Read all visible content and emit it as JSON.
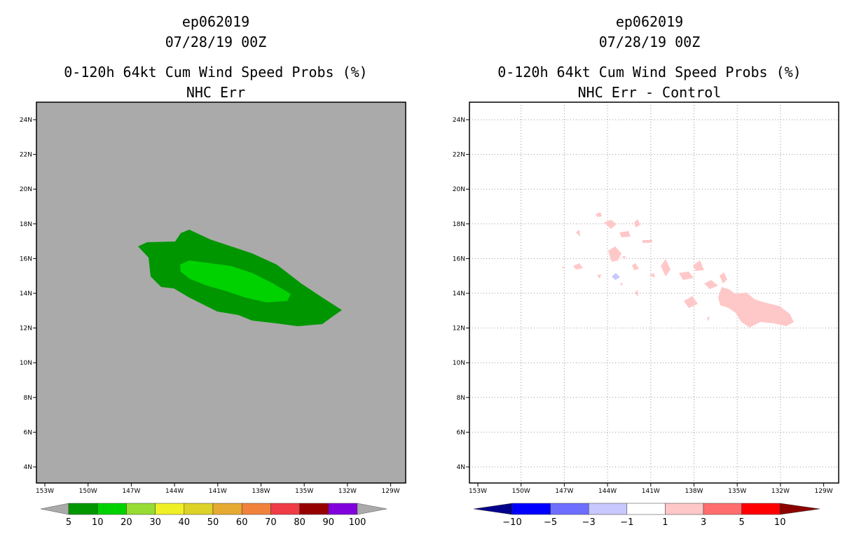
{
  "chart_data": [
    {
      "type": "heatmap",
      "storm_id": "ep062019",
      "datetime": "07/28/19 00Z",
      "title": "0-120h 64kt Cum Wind Speed Probs (%)",
      "subtitle": "NHC Err",
      "x_ticks": [
        "153W",
        "150W",
        "147W",
        "144W",
        "141W",
        "138W",
        "135W",
        "132W",
        "129W"
      ],
      "y_ticks": [
        "24N",
        "22N",
        "20N",
        "18N",
        "16N",
        "14N",
        "12N",
        "10N",
        "8N",
        "6N",
        "4N"
      ],
      "background_color": "#aaaaaa",
      "colorbar": {
        "labels": [
          "5",
          "10",
          "20",
          "30",
          "40",
          "50",
          "60",
          "70",
          "80",
          "90",
          "100"
        ],
        "colors": [
          "#009600",
          "#00d200",
          "#96dc32",
          "#f0f028",
          "#dcd228",
          "#e6aa32",
          "#f0823c",
          "#f03c46",
          "#960000",
          "#8200dc"
        ]
      },
      "regions": [
        {
          "level": "5-10",
          "color": "#009600"
        },
        {
          "level": "10-20",
          "color": "#00d200"
        }
      ]
    },
    {
      "type": "heatmap",
      "storm_id": "ep062019",
      "datetime": "07/28/19 00Z",
      "title": "0-120h 64kt Cum Wind Speed Probs (%)",
      "subtitle": "NHC Err - Control",
      "x_ticks": [
        "153W",
        "150W",
        "147W",
        "144W",
        "141W",
        "138W",
        "135W",
        "132W",
        "129W"
      ],
      "y_ticks": [
        "24N",
        "22N",
        "20N",
        "18N",
        "16N",
        "14N",
        "12N",
        "10N",
        "8N",
        "6N",
        "4N"
      ],
      "grid": true,
      "colorbar": {
        "labels": [
          "-10",
          "-5",
          "-3",
          "-1",
          "1",
          "3",
          "5",
          "10"
        ],
        "colors": [
          "#00008c",
          "#0000ff",
          "#6e6eff",
          "#c8c8ff",
          "#ffffff",
          "#ffc8c8",
          "#ff6e6e",
          "#ff0000",
          "#8c0000"
        ]
      },
      "regions": [
        {
          "level": "1-3",
          "color": "#ffc8c8"
        },
        {
          "level": "-3--1",
          "color": "#c8c8ff"
        }
      ]
    }
  ]
}
